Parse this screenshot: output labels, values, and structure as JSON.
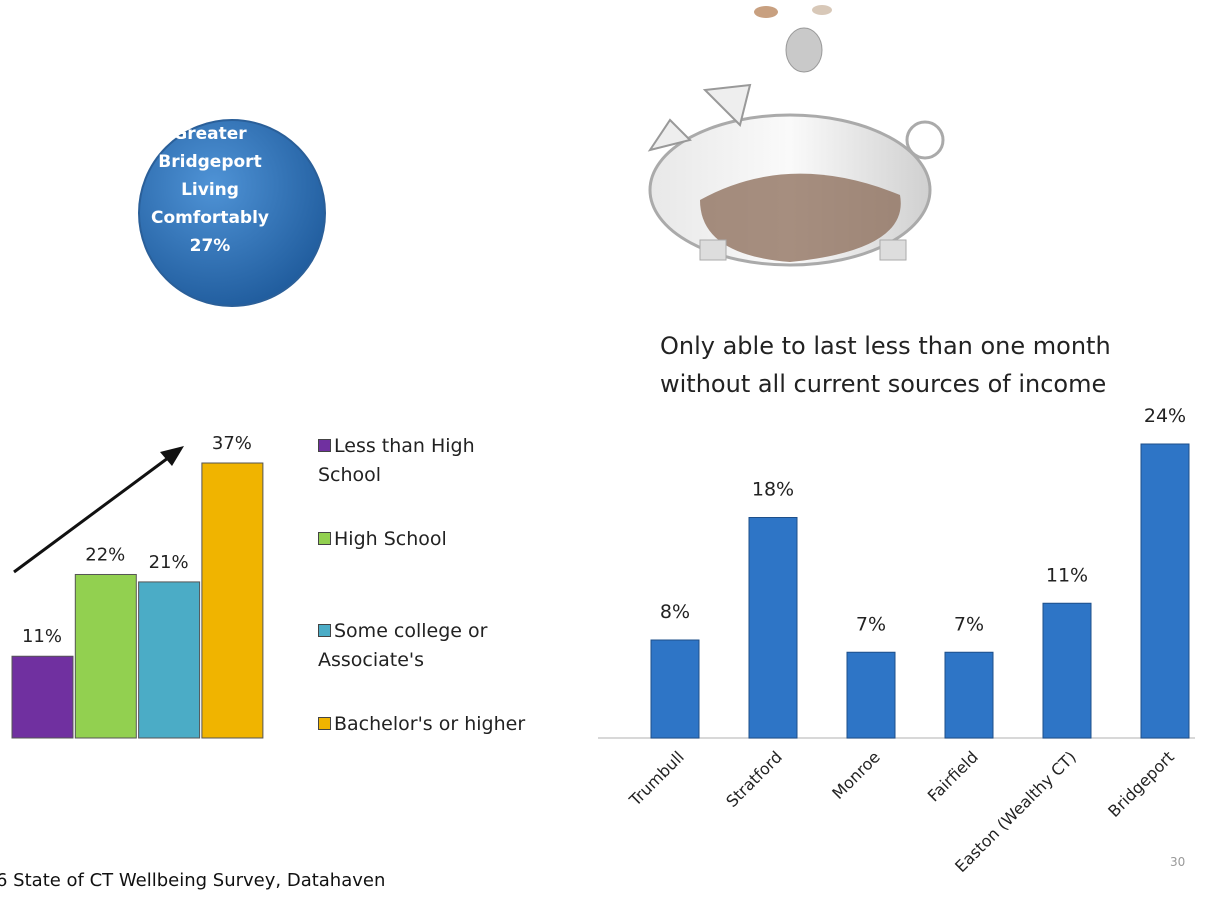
{
  "callout": {
    "lines": [
      "Greater",
      "Bridgeport",
      "Living",
      "Comfortably",
      "27%"
    ]
  },
  "chart_data": [
    {
      "type": "bar",
      "series": [
        {
          "name": "Less than High School",
          "color": "#7030a0",
          "values": [
            11
          ],
          "value_labels": [
            "11%"
          ]
        },
        {
          "name": "High School",
          "color": "#92d050",
          "values": [
            22
          ],
          "value_labels": [
            "22%"
          ]
        },
        {
          "name": "Some college or Associate's",
          "color": "#4bacc6",
          "values": [
            21
          ],
          "value_labels": [
            "21%"
          ]
        },
        {
          "name": "Bachelor's or higher",
          "color": "#f0b400",
          "values": [
            37
          ],
          "value_labels": [
            "37%"
          ]
        }
      ]
    },
    {
      "type": "bar",
      "title": "Only able to last less than one month without all current sources of income",
      "categories": [
        "Trumbull",
        "Stratford",
        "Monroe",
        "Fairfield",
        "Easton (Wealthy CT)",
        "Bridgeport"
      ],
      "values": [
        8,
        18,
        7,
        7,
        11,
        24
      ],
      "value_labels": [
        "8%",
        "18%",
        "7%",
        "7%",
        "11%",
        "24%"
      ],
      "color": "#2e75c6"
    }
  ],
  "footer": {
    "source": "6 State of CT Wellbeing Survey, Datahaven",
    "page": "30"
  }
}
